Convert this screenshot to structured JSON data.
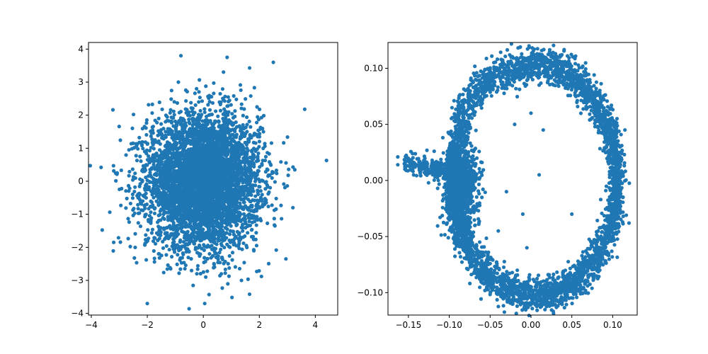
{
  "chart_data": [
    {
      "type": "scatter",
      "title": "",
      "xlabel": "",
      "ylabel": "",
      "xlim": [
        -4.1,
        4.8
      ],
      "ylim": [
        -4.05,
        4.2
      ],
      "xticks": [
        -4,
        -2,
        0,
        2,
        4
      ],
      "xtick_labels": [
        "−4",
        "−2",
        "0",
        "2",
        "4"
      ],
      "yticks": [
        -4,
        -3,
        -2,
        -1,
        0,
        1,
        2,
        3,
        4
      ],
      "ytick_labels": [
        "−4",
        "−3",
        "−2",
        "−1",
        "0",
        "1",
        "2",
        "3",
        "4"
      ],
      "grid": false,
      "color": "#1f77b4",
      "distribution": {
        "shape": "gaussian",
        "center": [
          0.0,
          0.0
        ],
        "std": [
          1.0,
          1.0
        ],
        "count": 5000
      },
      "notable_points": [
        [
          -3.65,
          0.42
        ],
        [
          4.4,
          0.63
        ],
        [
          -0.8,
          3.8
        ],
        [
          0.85,
          3.75
        ],
        [
          2.5,
          3.6
        ],
        [
          -2.0,
          -3.7
        ],
        [
          0.05,
          -3.7
        ],
        [
          -3.2,
          -1.85
        ],
        [
          2.95,
          -2.35
        ],
        [
          3.2,
          -0.8
        ]
      ]
    },
    {
      "type": "scatter",
      "title": "",
      "xlabel": "",
      "ylabel": "",
      "xlim": [
        -0.175,
        0.13
      ],
      "ylim": [
        -0.12,
        0.123
      ],
      "xticks": [
        -0.15,
        -0.1,
        -0.05,
        0.0,
        0.05,
        0.1
      ],
      "xtick_labels": [
        "−0.15",
        "−0.10",
        "−0.05",
        "0.00",
        "0.05",
        "0.10"
      ],
      "yticks": [
        -0.1,
        -0.05,
        0.0,
        0.05,
        0.1
      ],
      "ytick_labels": [
        "−0.10",
        "−0.05",
        "0.00",
        "0.05",
        "0.10"
      ],
      "grid": false,
      "color": "#1f77b4",
      "distribution": {
        "shape": "ring-with-tail",
        "ring_center": [
          0.005,
          0.0
        ],
        "ring_radius": [
          0.1,
          0.103
        ],
        "count": 5000
      },
      "notable_points": [
        [
          -0.163,
          0.021
        ],
        [
          -0.163,
          0.014
        ],
        [
          -0.145,
          0.024
        ],
        [
          -0.115,
          0.009
        ],
        [
          0.01,
          0.085
        ],
        [
          -0.0,
          0.06
        ],
        [
          0.015,
          0.045
        ],
        [
          -0.02,
          0.05
        ],
        [
          0.01,
          0.005
        ],
        [
          -0.03,
          -0.01
        ],
        [
          -0.04,
          -0.045
        ],
        [
          0.05,
          -0.03
        ],
        [
          -0.01,
          -0.03
        ],
        [
          -0.005,
          -0.06
        ],
        [
          0.12,
          -0.038
        ],
        [
          0.115,
          0.045
        ]
      ]
    }
  ]
}
